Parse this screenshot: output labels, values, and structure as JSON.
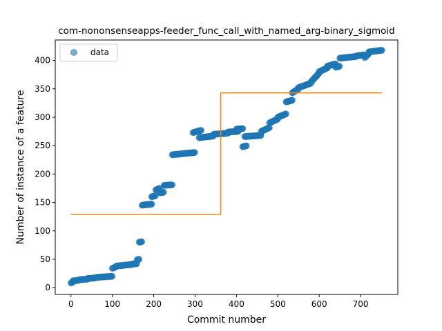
{
  "chart_data": {
    "type": "scatter",
    "title": "com-nononsenseapps-feeder_func_call_with_named_arg-binary_sigmoid",
    "xlabel": "Commit number",
    "ylabel": "Number of instance of a feature",
    "xlim": [
      -38,
      790
    ],
    "ylim": [
      -12,
      436
    ],
    "xticks": [
      0,
      100,
      200,
      300,
      400,
      500,
      600,
      700
    ],
    "yticks": [
      0,
      50,
      100,
      150,
      200,
      250,
      300,
      350,
      400
    ],
    "grid": false,
    "legend": {
      "position": "top-left",
      "entries": [
        "data"
      ]
    },
    "colors": {
      "data": "#1f77b4",
      "fit": "#ff7f0e"
    },
    "series": [
      {
        "name": "data",
        "kind": "scatter",
        "segments": [
          [
            0,
            5,
            8,
            10
          ],
          [
            5,
            20,
            12,
            13
          ],
          [
            20,
            40,
            14,
            15
          ],
          [
            40,
            60,
            16,
            17
          ],
          [
            60,
            80,
            18,
            19
          ],
          [
            80,
            100,
            19,
            20
          ],
          [
            100,
            110,
            34,
            37
          ],
          [
            110,
            150,
            38,
            41
          ],
          [
            150,
            160,
            42,
            42
          ],
          [
            160,
            165,
            49,
            50
          ],
          [
            165,
            172,
            80,
            81
          ],
          [
            172,
            180,
            145,
            146
          ],
          [
            180,
            195,
            146,
            147
          ],
          [
            195,
            205,
            160,
            162
          ],
          [
            205,
            215,
            172,
            175
          ],
          [
            215,
            225,
            167,
            168
          ],
          [
            225,
            245,
            180,
            181
          ],
          [
            245,
            300,
            234,
            238
          ],
          [
            295,
            315,
            273,
            277
          ],
          [
            310,
            345,
            264,
            267
          ],
          [
            345,
            380,
            270,
            272
          ],
          [
            380,
            405,
            274,
            275
          ],
          [
            400,
            415,
            279,
            280
          ],
          [
            415,
            425,
            248,
            250
          ],
          [
            420,
            460,
            266,
            268
          ],
          [
            460,
            480,
            275,
            282
          ],
          [
            480,
            500,
            290,
            297
          ],
          [
            500,
            520,
            300,
            306
          ],
          [
            520,
            535,
            327,
            330
          ],
          [
            535,
            550,
            343,
            350
          ],
          [
            550,
            580,
            352,
            360
          ],
          [
            580,
            600,
            362,
            378
          ],
          [
            600,
            620,
            380,
            387
          ],
          [
            620,
            640,
            390,
            394
          ],
          [
            640,
            650,
            388,
            390
          ],
          [
            650,
            690,
            404,
            407
          ],
          [
            690,
            710,
            408,
            410
          ],
          [
            710,
            720,
            405,
            412
          ],
          [
            720,
            752,
            415,
            418
          ]
        ]
      },
      {
        "name": "",
        "kind": "step-line",
        "x": [
          0,
          362,
          362,
          752
        ],
        "y": [
          129,
          129,
          343,
          343
        ]
      }
    ]
  }
}
